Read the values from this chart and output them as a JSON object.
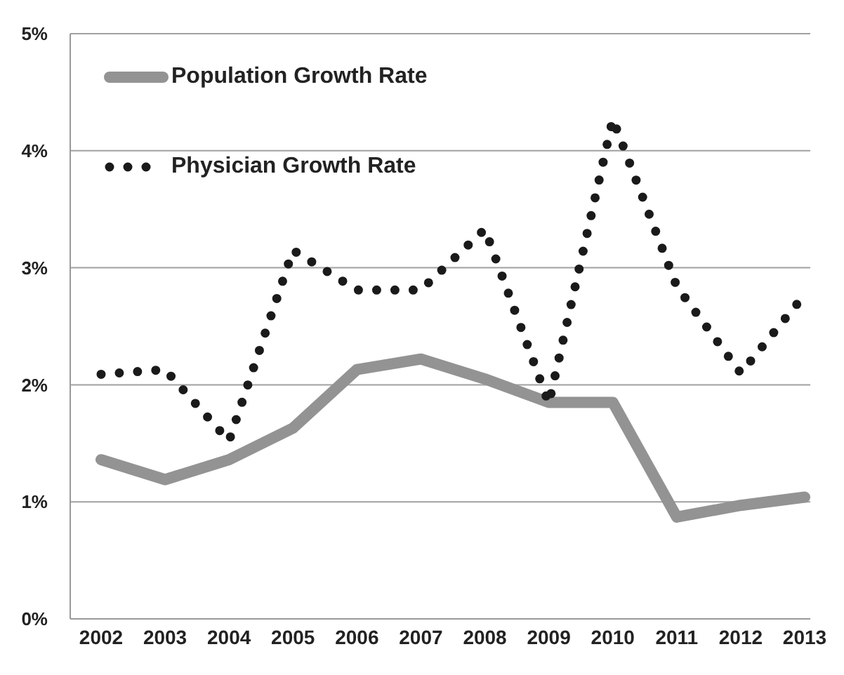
{
  "chart_data": {
    "type": "line",
    "categories": [
      "2002",
      "2003",
      "2004",
      "2005",
      "2006",
      "2007",
      "2008",
      "2009",
      "2010",
      "2011",
      "2012",
      "2013"
    ],
    "series": [
      {
        "name": "Population Growth Rate",
        "color": "#939393",
        "line_style": "solid",
        "values": [
          1.36,
          1.19,
          1.36,
          1.63,
          2.13,
          2.22,
          2.05,
          1.85,
          1.85,
          0.87,
          0.97,
          1.04
        ]
      },
      {
        "name": "Physician Growth Rate",
        "color": "#1a1a1a",
        "line_style": "dotted",
        "values": [
          2.09,
          2.13,
          1.52,
          3.15,
          2.81,
          2.81,
          3.33,
          1.84,
          4.27,
          2.84,
          2.1,
          2.77
        ]
      }
    ],
    "ylim": [
      0,
      5
    ],
    "yticks": [
      {
        "value": 0,
        "label": "0%"
      },
      {
        "value": 1,
        "label": "1%"
      },
      {
        "value": 2,
        "label": "2%"
      },
      {
        "value": 3,
        "label": "3%"
      },
      {
        "value": 4,
        "label": "4%"
      },
      {
        "value": 5,
        "label": "5%"
      }
    ],
    "grid": "y",
    "legend": "top left",
    "marker": "none"
  }
}
